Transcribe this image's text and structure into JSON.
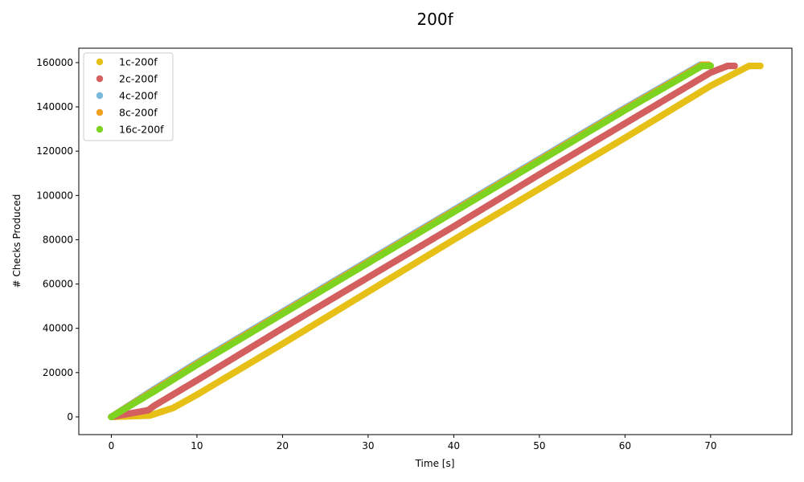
{
  "chart_data": {
    "type": "scatter",
    "title": "200f",
    "xlabel": "Time [s]",
    "ylabel": "# Checks Produced",
    "xlim": [
      -3.8,
      79.5
    ],
    "ylim": [
      -8000,
      166500
    ],
    "xticks": [
      0,
      10,
      20,
      30,
      40,
      50,
      60,
      70
    ],
    "yticks": [
      0,
      20000,
      40000,
      60000,
      80000,
      100000,
      120000,
      140000,
      160000
    ],
    "grid": false,
    "legend_position": "top-left",
    "series": [
      {
        "name": "1c-200f",
        "color": "#e6c016",
        "points": [
          [
            0,
            0
          ],
          [
            4.5,
            600
          ],
          [
            7.2,
            4000
          ],
          [
            10,
            10000
          ],
          [
            20,
            33000
          ],
          [
            30,
            56500
          ],
          [
            40,
            80000
          ],
          [
            50,
            103000
          ],
          [
            60,
            126000
          ],
          [
            70,
            149500
          ],
          [
            74.5,
            158500
          ],
          [
            75.8,
            158500
          ]
        ]
      },
      {
        "name": "2c-200f",
        "color": "#d45f5f",
        "points": [
          [
            0,
            0
          ],
          [
            4.3,
            3000
          ],
          [
            5,
            5000
          ],
          [
            10,
            16500
          ],
          [
            20,
            40000
          ],
          [
            30,
            63000
          ],
          [
            40,
            86000
          ],
          [
            50,
            109500
          ],
          [
            60,
            132500
          ],
          [
            70,
            155500
          ],
          [
            72,
            158500
          ],
          [
            72.8,
            158500
          ]
        ]
      },
      {
        "name": "4c-200f",
        "color": "#7ab8dc",
        "points": [
          [
            0,
            0
          ],
          [
            5,
            12500
          ],
          [
            10,
            24500
          ],
          [
            20,
            47500
          ],
          [
            30,
            70500
          ],
          [
            40,
            93500
          ],
          [
            50,
            116500
          ],
          [
            60,
            139500
          ],
          [
            68.8,
            159000
          ],
          [
            69.3,
            159000
          ]
        ]
      },
      {
        "name": "8c-200f",
        "color": "#f0a020",
        "points": [
          [
            0,
            0
          ],
          [
            5,
            12000
          ],
          [
            10,
            24000
          ],
          [
            20,
            47000
          ],
          [
            30,
            70000
          ],
          [
            40,
            93000
          ],
          [
            50,
            116000
          ],
          [
            60,
            139000
          ],
          [
            69,
            159000
          ],
          [
            69.8,
            159000
          ]
        ]
      },
      {
        "name": "16c-200f",
        "color": "#7ed321",
        "points": [
          [
            0,
            0
          ],
          [
            5,
            11500
          ],
          [
            10,
            23500
          ],
          [
            20,
            46500
          ],
          [
            30,
            69500
          ],
          [
            40,
            92500
          ],
          [
            50,
            115500
          ],
          [
            60,
            138500
          ],
          [
            69,
            158500
          ],
          [
            70,
            158500
          ]
        ]
      }
    ]
  }
}
